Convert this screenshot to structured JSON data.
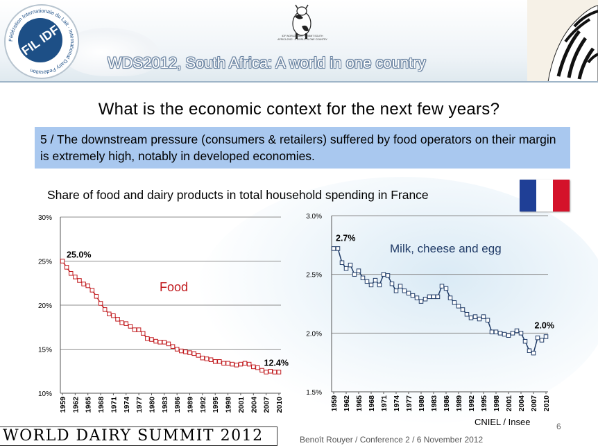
{
  "header": {
    "banner_title": "WDS2012, South Africa: A world in one country",
    "logo_text": "FIL IDF",
    "logo_ring_text": "Fédération Internationale du Lait · International Dairy Federation",
    "cow_caption": "IDF WORLD DAIRY SUMMIT SOUTH AFRICA 2012 · A WORLD IN ONE COUNTRY"
  },
  "slide": {
    "title": "What is the economic context for the next few years?",
    "point": "5 / The downstream pressure (consumers & retailers) suffered by food operators on their margin is extremely high, notably in developed economies.",
    "chart_title": "Share of food and dairy products in total household spending  in France"
  },
  "flag": {
    "colors": [
      "#1f3f96",
      "#ffffff",
      "#d4122a"
    ]
  },
  "footer": {
    "brand": "WORLD DAIRY SUMMIT 2012",
    "credit": "Benoît Rouyer / Conference 2 /  6 November 2012",
    "source": "CNIEL / Insee",
    "page_number": "6"
  },
  "chart_data": [
    {
      "type": "line",
      "series": [
        {
          "name": "Food",
          "color": "#c0181c",
          "x": [
            1959,
            1960,
            1961,
            1962,
            1963,
            1964,
            1965,
            1966,
            1967,
            1968,
            1969,
            1970,
            1971,
            1972,
            1973,
            1974,
            1975,
            1976,
            1977,
            1978,
            1979,
            1980,
            1981,
            1982,
            1983,
            1984,
            1985,
            1986,
            1987,
            1988,
            1989,
            1990,
            1991,
            1992,
            1993,
            1994,
            1995,
            1996,
            1997,
            1998,
            1999,
            2000,
            2001,
            2002,
            2003,
            2004,
            2005,
            2006,
            2007,
            2008,
            2009,
            2010
          ],
          "values": [
            25.0,
            24.3,
            23.6,
            23.2,
            22.8,
            22.4,
            22.2,
            21.7,
            21.0,
            20.2,
            19.5,
            19.0,
            18.8,
            18.4,
            18.0,
            17.9,
            17.6,
            17.2,
            17.2,
            16.8,
            16.2,
            16.1,
            15.9,
            15.8,
            15.8,
            15.6,
            15.3,
            15.0,
            14.8,
            14.7,
            14.6,
            14.5,
            14.3,
            14.0,
            13.9,
            13.8,
            13.6,
            13.6,
            13.4,
            13.4,
            13.3,
            13.2,
            13.3,
            13.4,
            13.3,
            13.0,
            12.9,
            12.6,
            12.4,
            12.5,
            12.4,
            12.4
          ]
        }
      ],
      "annotations": [
        {
          "x": 1959,
          "y": 25.0,
          "text": "25.0%"
        },
        {
          "x": 2010,
          "y": 12.4,
          "text": "12.4%"
        }
      ],
      "ylim": [
        10,
        30
      ],
      "yticks": [
        "10%",
        "15%",
        "20%",
        "25%",
        "30%"
      ],
      "xticks": [
        "1959",
        "1962",
        "1965",
        "1968",
        "1971",
        "1974",
        "1977",
        "1980",
        "1983",
        "1986",
        "1989",
        "1992",
        "1995",
        "1998",
        "2001",
        "2004",
        "2007",
        "2010"
      ],
      "grid": true
    },
    {
      "type": "line",
      "series": [
        {
          "name": "Milk, cheese and egg",
          "color": "#1f3a66",
          "x": [
            1959,
            1960,
            1961,
            1962,
            1963,
            1964,
            1965,
            1966,
            1967,
            1968,
            1969,
            1970,
            1971,
            1972,
            1973,
            1974,
            1975,
            1976,
            1977,
            1978,
            1979,
            1980,
            1981,
            1982,
            1983,
            1984,
            1985,
            1986,
            1987,
            1988,
            1989,
            1990,
            1991,
            1992,
            1993,
            1994,
            1995,
            1996,
            1997,
            1998,
            1999,
            2000,
            2001,
            2002,
            2003,
            2004,
            2005,
            2006,
            2007,
            2008,
            2009,
            2010
          ],
          "values": [
            2.72,
            2.72,
            2.6,
            2.55,
            2.58,
            2.5,
            2.53,
            2.47,
            2.44,
            2.41,
            2.45,
            2.41,
            2.5,
            2.49,
            2.42,
            2.36,
            2.4,
            2.36,
            2.34,
            2.32,
            2.3,
            2.27,
            2.29,
            2.31,
            2.31,
            2.31,
            2.4,
            2.38,
            2.3,
            2.26,
            2.23,
            2.2,
            2.16,
            2.13,
            2.14,
            2.12,
            2.14,
            2.11,
            2.01,
            2.01,
            2.0,
            1.99,
            1.98,
            2.0,
            2.02,
            2.0,
            1.93,
            1.85,
            1.83,
            1.96,
            1.94,
            1.97
          ]
        }
      ],
      "annotations": [
        {
          "x": 1959,
          "y": 2.72,
          "text": "2.7%"
        },
        {
          "x": 2010,
          "y": 1.97,
          "text": "2.0%"
        }
      ],
      "ylim": [
        1.5,
        3.0
      ],
      "yticks": [
        "1.5%",
        "2.0%",
        "2.5%",
        "3.0%"
      ],
      "xticks": [
        "1959",
        "1962",
        "1965",
        "1968",
        "1971",
        "1974",
        "1977",
        "1980",
        "1983",
        "1986",
        "1989",
        "1992",
        "1995",
        "1998",
        "2001",
        "2004",
        "2007",
        "2010"
      ],
      "grid": true
    }
  ]
}
